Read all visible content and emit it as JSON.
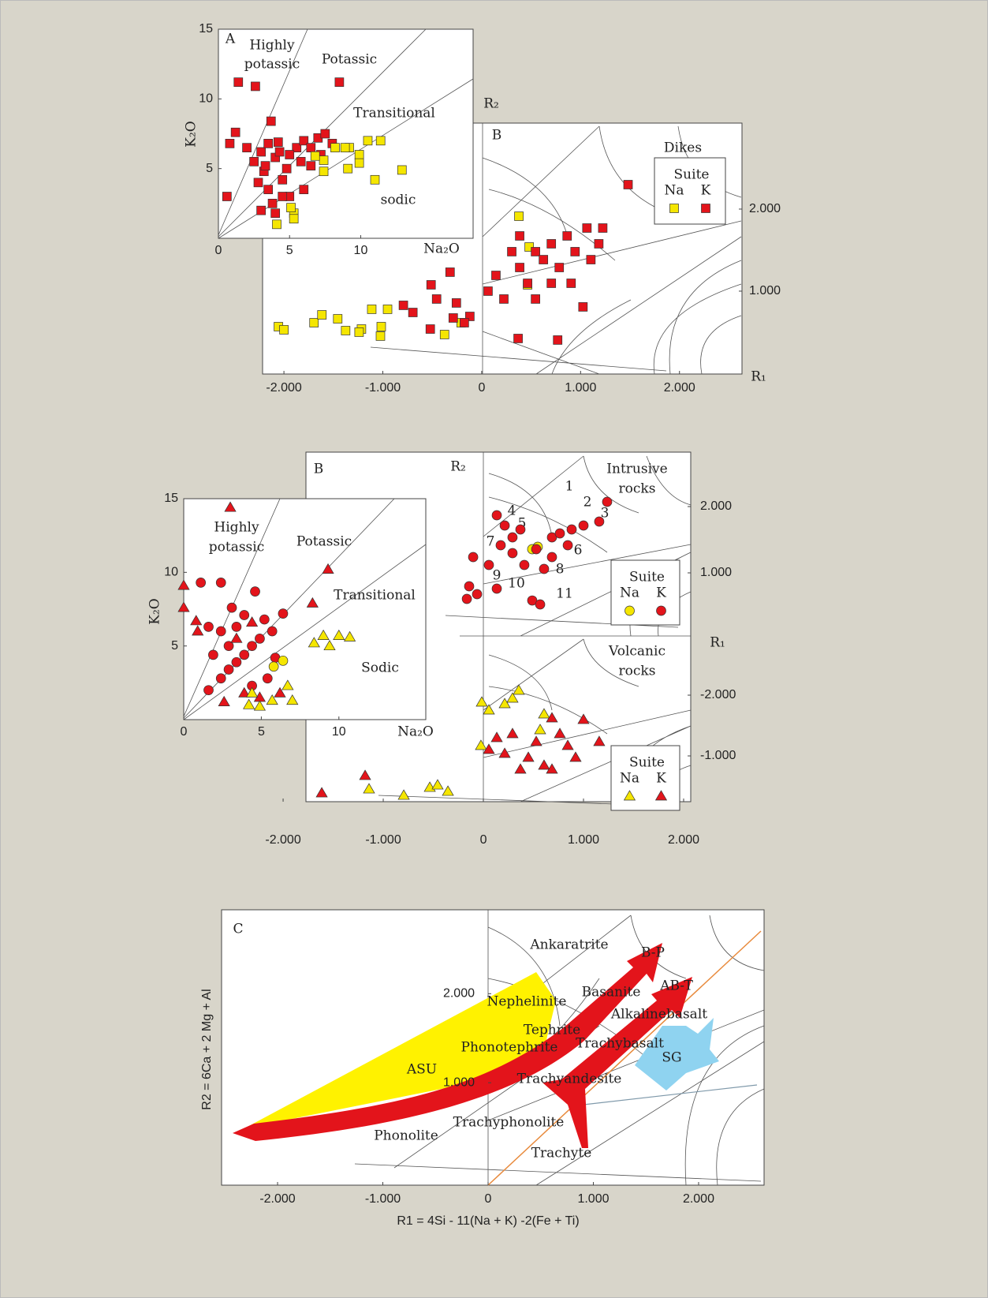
{
  "chart_data": [
    {
      "type": "scatter",
      "panel": "A",
      "xlabel": "Na₂O",
      "ylabel": "K₂O",
      "xlim": [
        0,
        17.9
      ],
      "ylim": [
        0,
        15
      ],
      "xticks": [
        0,
        5,
        10
      ],
      "yticks": [
        5,
        10,
        15
      ],
      "annotations": [
        "Highly",
        "potassic",
        "Potassic",
        "Transitional",
        "sodic"
      ],
      "series": [
        {
          "color": "#e3141b",
          "marker": "square",
          "x": [
            0.6,
            0.8,
            1.2,
            1.4,
            2.6,
            8.5,
            3.7,
            2.0,
            2.5,
            3.0,
            3.2,
            3.5,
            3.8,
            4.0,
            4.2,
            4.5,
            4.8,
            3.0,
            4.0,
            5.0,
            5.5,
            6.0,
            6.5,
            7.0,
            7.5,
            6.0,
            8.0,
            5.0,
            3.5,
            2.8,
            4.5,
            4.3,
            3.3,
            5.8,
            7.2,
            6.5
          ],
          "y": [
            3.0,
            6.8,
            7.6,
            11.2,
            10.9,
            11.2,
            8.4,
            6.5,
            5.5,
            6.2,
            4.8,
            3.5,
            2.5,
            5.8,
            6.9,
            4.2,
            5.0,
            2.0,
            1.8,
            3.0,
            6.5,
            7.0,
            6.5,
            7.2,
            7.5,
            3.5,
            6.8,
            6.0,
            6.8,
            4.0,
            3.0,
            6.2,
            5.2,
            5.5,
            6.0,
            5.2
          ]
        },
        {
          "color": "#f5e600",
          "marker": "square",
          "x": [
            4.1,
            5.3,
            5.3,
            5.1,
            7.4,
            7.4,
            9.1,
            10.5,
            11.4,
            11.0,
            12.9,
            9.2,
            9.9,
            9.9,
            8.2,
            8.9,
            6.8
          ],
          "y": [
            1.0,
            1.8,
            1.4,
            2.2,
            5.6,
            4.8,
            5.0,
            7.0,
            7.0,
            4.2,
            4.9,
            6.5,
            6.0,
            5.4,
            6.5,
            6.5,
            5.9
          ]
        }
      ]
    },
    {
      "type": "scatter",
      "panel": "B",
      "xlabel": "R₁",
      "ylabel": "R₂",
      "xlim": [
        -2216,
        2632
      ],
      "ylim": [
        -10,
        3048
      ],
      "xticks": [
        {
          "value": -2000,
          "label": "-2.000"
        },
        {
          "value": -1000,
          "label": "-1.000"
        },
        0,
        {
          "value": 1000,
          "label": "1.000"
        },
        {
          "value": 2000,
          "label": "2.000"
        }
      ],
      "yticks": [
        {
          "value": 1000,
          "label": "1.000"
        },
        {
          "value": 2000,
          "label": "2.000"
        }
      ],
      "legend": {
        "heading": "Dikes",
        "title": "Suite"
      },
      "series": [
        {
          "name": "Na",
          "color": "#f5e600",
          "marker": "square",
          "x": [
            -2056,
            -2000,
            -1696,
            -1456,
            -1376,
            -1216,
            -1112,
            -1016,
            -952,
            -1024,
            -1240,
            -1616,
            -376,
            -208,
            376,
            480,
            464
          ],
          "y": [
            567,
            529,
            615,
            663,
            519,
            538,
            779,
            567,
            779,
            452,
            500,
            711,
            471,
            615,
            1913,
            1538,
            1077
          ]
        },
        {
          "name": "K",
          "color": "#e3141b",
          "marker": "square",
          "x": [
            1480,
            -512,
            -320,
            -256,
            -792,
            -696,
            -456,
            -520,
            -288,
            -120,
            368,
            768,
            1024,
            224,
            144,
            384,
            544,
            704,
            864,
            1064,
            1224,
            624,
            784,
            464,
            304,
            944,
            1184,
            64,
            704,
            544,
            1104,
            384,
            904,
            -176
          ],
          "y": [
            2298,
            1077,
            1231,
            856,
            827,
            740,
            904,
            538,
            673,
            692,
            423,
            404,
            808,
            904,
            1192,
            1288,
            1481,
            1577,
            1673,
            1769,
            1769,
            1384,
            1288,
            1096,
            1481,
            1481,
            1577,
            1000,
            1096,
            904,
            1384,
            1673,
            1096,
            615
          ]
        }
      ]
    },
    {
      "type": "scatter",
      "xlabel": "Na₂O",
      "ylabel": "K₂O",
      "xlim": [
        0,
        15.6
      ],
      "ylim": [
        0,
        15
      ],
      "xticks": [
        0,
        5,
        10
      ],
      "yticks": [
        5,
        10,
        15
      ],
      "annotations": [
        "Highly",
        "potassic",
        "Potassic",
        "Transitional",
        "Sodic"
      ],
      "series": [
        {
          "color": "#e3141b",
          "marker": "circle",
          "x": [
            1.1,
            2.4,
            4.6,
            3.9,
            1.6,
            2.9,
            3.4,
            2.4,
            1.6,
            4.4,
            5.4,
            6.4,
            5.7,
            4.9,
            3.9,
            2.9,
            2.4,
            3.4,
            4.4,
            5.2,
            1.9,
            5.9,
            3.1
          ],
          "y": [
            9.3,
            9.3,
            8.7,
            7.1,
            6.3,
            5.0,
            3.9,
            2.8,
            2.0,
            2.3,
            2.8,
            7.2,
            6.0,
            5.5,
            4.4,
            3.4,
            6.0,
            6.3,
            5.0,
            6.8,
            4.4,
            4.2,
            7.6
          ]
        },
        {
          "color": "#e3141b",
          "marker": "triangle",
          "x": [
            3.0,
            0,
            0,
            9.3,
            8.3,
            0.8,
            0.9,
            4.4,
            3.4,
            2.6,
            4.9,
            6.2,
            3.9
          ],
          "y": [
            14.4,
            9.1,
            7.6,
            10.2,
            7.9,
            6.7,
            6.0,
            6.6,
            5.5,
            1.2,
            1.5,
            1.8,
            1.8
          ]
        },
        {
          "color": "#f5e600",
          "marker": "circle",
          "x": [
            5.8,
            6.4
          ],
          "y": [
            3.6,
            4.0
          ]
        },
        {
          "color": "#f5e600",
          "marker": "triangle",
          "x": [
            4.9,
            4.4,
            5.7,
            7.0,
            6.7,
            8.4,
            9.0,
            10.0,
            10.7,
            9.4,
            4.2
          ],
          "y": [
            0.9,
            1.8,
            1.3,
            1.3,
            2.3,
            5.2,
            5.7,
            5.7,
            5.6,
            5.0,
            1.0
          ]
        }
      ]
    },
    {
      "type": "scatter",
      "panel": "B",
      "xlabel": "R₁",
      "ylabel": "R₂",
      "xlim": [
        -1772,
        2071
      ],
      "ylim": [
        48,
        2821
      ],
      "yticks": [
        {
          "value": 1000,
          "label": "1.000"
        },
        {
          "value": 2000,
          "label": "2.000"
        }
      ],
      "annotations": [
        "Intrusive",
        "rocks",
        "1",
        "2",
        "3",
        "4",
        "5",
        "6",
        "7",
        "8",
        "9",
        "10",
        "11"
      ],
      "legend": {
        "title": "Suite"
      },
      "series": [
        {
          "name": "Na",
          "color": "#f5e600",
          "marker": "circle",
          "x": [
            488,
            543
          ],
          "y": [
            1357,
            1393
          ]
        },
        {
          "name": "K",
          "color": "#e3141b",
          "marker": "circle",
          "x": [
            1236,
            134,
            213,
            -102,
            -142,
            -63,
            -165,
            134,
            55,
            370,
            685,
            1000,
            1157,
            528,
            291,
            606,
            488,
            567,
            685,
            843,
            291,
            764,
            409,
            173,
            882
          ],
          "y": [
            2071,
            1869,
            1714,
            1238,
            798,
            679,
            607,
            762,
            1119,
            1655,
            1536,
            1714,
            1774,
            1357,
            1298,
            1060,
            583,
            524,
            1238,
            1417,
            1536,
            1595,
            1119,
            1417,
            1655
          ]
        }
      ]
    },
    {
      "type": "scatter",
      "xlim": [
        -1772,
        2071
      ],
      "ylim": [
        -247,
        -2974
      ],
      "xticks": [
        {
          "value": -2000,
          "label": "-2.000"
        },
        {
          "value": -1000,
          "label": "-1.000"
        },
        0,
        {
          "value": 1000,
          "label": "1.000"
        },
        {
          "value": 2000,
          "label": "2.000"
        }
      ],
      "yticks": [
        {
          "value": -2000,
          "label": "-2.000"
        },
        {
          "value": -1000,
          "label": "-1.000"
        }
      ],
      "annotations": [
        "Volcanic",
        "rocks"
      ],
      "legend": {
        "title": "Suite"
      },
      "series": [
        {
          "name": "Na",
          "color": "#f5e600",
          "marker": "triangle",
          "x": [
            -1142,
            -795,
            -535,
            -354,
            -457,
            -24,
            55,
            213,
            354,
            -16,
            291,
            567,
            606
          ],
          "y": [
            -454,
            -350,
            -480,
            -415,
            -519,
            -1169,
            -1753,
            -1857,
            -2078,
            -1883,
            -1948,
            -1429,
            -1688
          ]
        },
        {
          "name": "K",
          "color": "#e3141b",
          "marker": "triangle",
          "x": [
            -1614,
            -1181,
            55,
            291,
            685,
            1000,
            1157,
            449,
            606,
            843,
            213,
            528,
            764,
            370,
            685,
            134,
            921
          ],
          "y": [
            -389,
            -675,
            -1104,
            -1364,
            -1623,
            -1597,
            -1234,
            -974,
            -844,
            -1169,
            -1039,
            -1234,
            -1364,
            -779,
            -779,
            -1299,
            -974
          ]
        }
      ]
    },
    {
      "type": "classification",
      "panel": "C",
      "xlabel": "R1 = 4Si - 11(Na + K) -2(Fe + Ti)",
      "ylabel": "R2 = 6Ca + 2 Mg + Al",
      "xlim": [
        -2532,
        2622
      ],
      "ylim": [
        -150,
        2942
      ],
      "xticks": [
        {
          "value": -2000,
          "label": "-2.000"
        },
        {
          "value": -1000,
          "label": "-1.000"
        },
        0,
        {
          "value": 1000,
          "label": "1.000"
        },
        {
          "value": 2000,
          "label": "2.000"
        }
      ],
      "yticks": [
        {
          "value": 1000,
          "label": "1.000"
        },
        {
          "value": 2000,
          "label": "2.000"
        }
      ],
      "annotations": [
        "Ankaratrite",
        "B-P",
        "Basanite",
        "AB-T",
        "Nephelinite",
        "Alkalinebasalt",
        "Tephrite",
        "Phonotephrite",
        "Trachybasalt",
        "SG",
        "ASU",
        "Trachyandesite",
        "Trachyphonolite",
        "Phonolite",
        "Trachyte"
      ]
    }
  ]
}
